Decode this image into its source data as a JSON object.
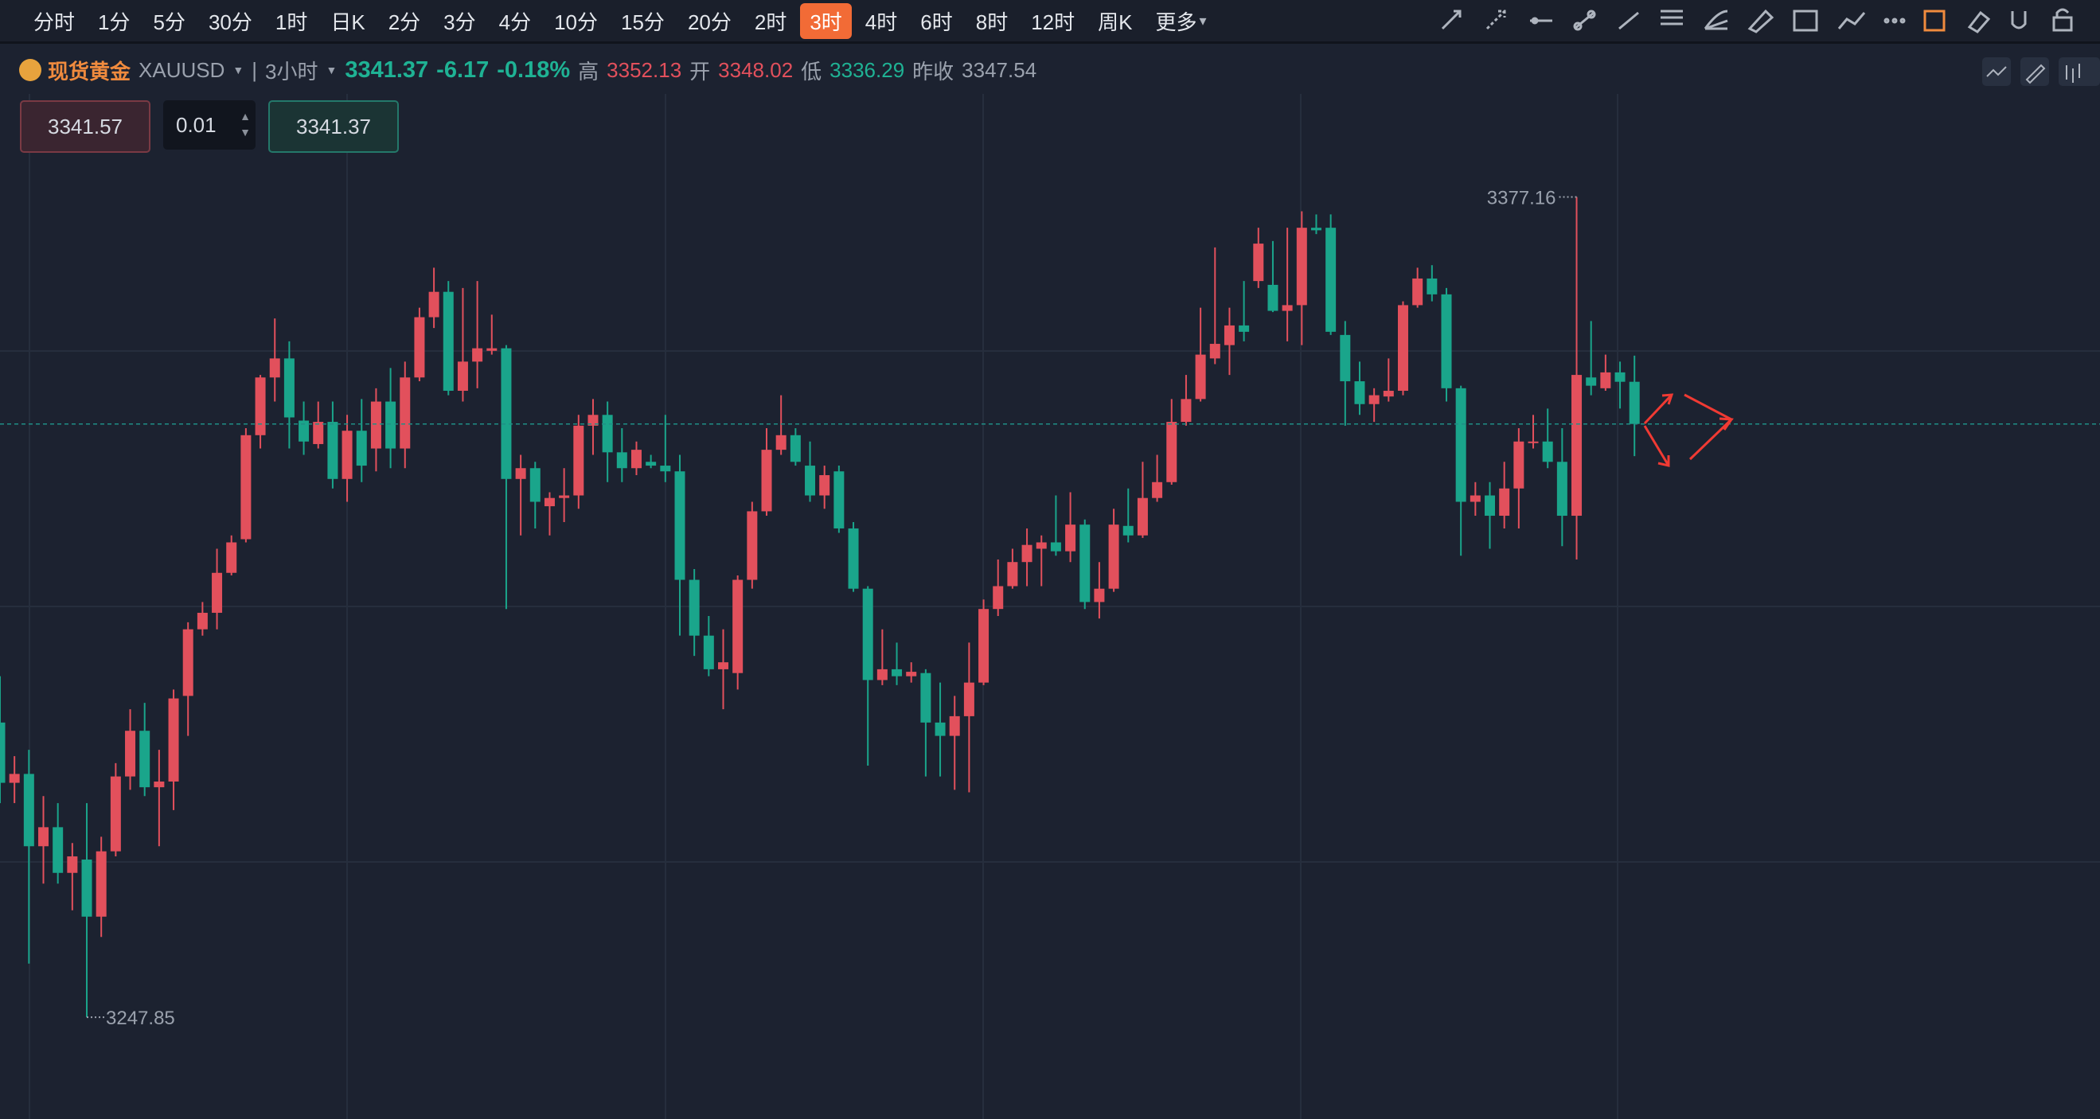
{
  "toolbar": {
    "intervals": [
      "分时",
      "1分",
      "5分",
      "30分",
      "1时",
      "日K",
      "2分",
      "3分",
      "4分",
      "10分",
      "15分",
      "20分",
      "2时",
      "3时",
      "4时",
      "6时",
      "8时",
      "12时",
      "周K",
      "更多"
    ],
    "active_interval": 13
  },
  "header": {
    "name": "现货黄金",
    "symbol": "XAUUSD",
    "period": "3小时",
    "last": 3341.37,
    "change": "-6.17",
    "change_pct": "-0.18%",
    "high_label": "高",
    "high": "3352.13",
    "open_label": "开",
    "open": "3348.02",
    "low_label": "低",
    "low": "3336.29",
    "prev_close_label": "昨收",
    "prev_close": "3347.54"
  },
  "order": {
    "sell": "3341.57",
    "lots": "0.01",
    "buy": "3341.37"
  },
  "chart_data": {
    "type": "candlestick",
    "up_color": "#e2505c",
    "down_color": "#1aa58b",
    "ylim": [
      3231.8,
      3393.4
    ],
    "max_label": 3377.16,
    "min_label": 3247.85,
    "candles": [
      [
        3294.3,
        3301.6,
        3281.6,
        3284.8
      ],
      [
        3284.8,
        3289.0,
        3281.6,
        3286.2
      ],
      [
        3286.2,
        3290.0,
        3256.3,
        3274.8
      ],
      [
        3274.8,
        3282.7,
        3268.9,
        3277.8
      ],
      [
        3277.8,
        3281.6,
        3268.9,
        3270.6
      ],
      [
        3270.6,
        3275.3,
        3264.7,
        3273.2
      ],
      [
        3272.7,
        3281.6,
        3247.85,
        3263.7
      ],
      [
        3263.7,
        3276.3,
        3260.5,
        3274.0
      ],
      [
        3274.0,
        3287.9,
        3273.2,
        3285.8
      ],
      [
        3285.8,
        3296.4,
        3283.7,
        3293.0
      ],
      [
        3293.0,
        3297.4,
        3282.7,
        3284.1
      ],
      [
        3284.1,
        3290.0,
        3274.8,
        3285.0
      ],
      [
        3285.0,
        3299.5,
        3280.5,
        3298.1
      ],
      [
        3298.5,
        3310.1,
        3292.2,
        3309.0
      ],
      [
        3309.0,
        3313.3,
        3308.0,
        3311.6
      ],
      [
        3311.6,
        3321.7,
        3309.0,
        3317.9
      ],
      [
        3317.9,
        3323.8,
        3317.5,
        3322.7
      ],
      [
        3323.2,
        3340.7,
        3322.7,
        3339.6
      ],
      [
        3339.6,
        3349.1,
        3337.5,
        3348.7
      ],
      [
        3348.7,
        3358.0,
        3344.9,
        3351.7
      ],
      [
        3351.7,
        3354.4,
        3337.5,
        3342.4
      ],
      [
        3341.9,
        3344.9,
        3336.5,
        3338.6
      ],
      [
        3338.2,
        3344.9,
        3337.5,
        3341.7
      ],
      [
        3341.7,
        3344.9,
        3331.2,
        3332.7
      ],
      [
        3332.7,
        3342.8,
        3329.1,
        3340.3
      ],
      [
        3340.3,
        3345.3,
        3332.2,
        3334.8
      ],
      [
        3337.5,
        3347.0,
        3333.9,
        3344.9
      ],
      [
        3344.9,
        3350.2,
        3334.4,
        3337.5
      ],
      [
        3337.5,
        3351.2,
        3334.4,
        3348.7
      ],
      [
        3348.7,
        3359.7,
        3348.1,
        3358.2
      ],
      [
        3358.2,
        3366.0,
        3356.5,
        3362.2
      ],
      [
        3362.2,
        3363.9,
        3345.9,
        3346.6
      ],
      [
        3346.6,
        3362.8,
        3344.9,
        3351.2
      ],
      [
        3351.2,
        3363.9,
        3347.0,
        3353.3
      ],
      [
        3352.9,
        3358.6,
        3352.3,
        3353.3
      ],
      [
        3353.3,
        3353.8,
        3312.2,
        3332.7
      ],
      [
        3332.7,
        3336.5,
        3323.8,
        3334.4
      ],
      [
        3334.4,
        3335.4,
        3324.9,
        3329.1
      ],
      [
        3328.4,
        3330.6,
        3323.8,
        3329.7
      ],
      [
        3329.7,
        3334.4,
        3325.9,
        3330.1
      ],
      [
        3330.1,
        3342.8,
        3328.0,
        3341.1
      ],
      [
        3341.1,
        3345.3,
        3336.5,
        3342.8
      ],
      [
        3342.8,
        3344.9,
        3332.2,
        3336.9
      ],
      [
        3336.9,
        3340.7,
        3332.2,
        3334.4
      ],
      [
        3334.4,
        3338.6,
        3333.3,
        3337.3
      ],
      [
        3335.4,
        3336.5,
        3334.4,
        3334.8
      ],
      [
        3334.8,
        3342.8,
        3332.2,
        3333.9
      ],
      [
        3333.9,
        3336.5,
        3308.0,
        3316.8
      ],
      [
        3316.8,
        3318.5,
        3304.8,
        3308.0
      ],
      [
        3308.0,
        3311.1,
        3301.6,
        3302.7
      ],
      [
        3302.7,
        3309.0,
        3296.4,
        3303.8
      ],
      [
        3302.1,
        3317.5,
        3299.5,
        3316.8
      ],
      [
        3316.8,
        3329.1,
        3315.4,
        3327.6
      ],
      [
        3327.6,
        3340.7,
        3326.9,
        3337.3
      ],
      [
        3337.3,
        3345.9,
        3336.5,
        3339.6
      ],
      [
        3339.6,
        3340.7,
        3334.8,
        3335.4
      ],
      [
        3334.8,
        3338.6,
        3329.1,
        3330.1
      ],
      [
        3330.1,
        3334.8,
        3328.0,
        3333.3
      ],
      [
        3333.9,
        3334.8,
        3324.2,
        3324.9
      ],
      [
        3324.9,
        3325.9,
        3314.9,
        3315.4
      ],
      [
        3315.4,
        3315.8,
        3287.5,
        3301.0
      ],
      [
        3301.0,
        3309.0,
        3300.2,
        3302.7
      ],
      [
        3302.7,
        3306.9,
        3300.2,
        3301.6
      ],
      [
        3301.6,
        3303.8,
        3300.6,
        3302.3
      ],
      [
        3302.1,
        3302.7,
        3285.8,
        3294.3
      ],
      [
        3294.3,
        3300.6,
        3285.8,
        3292.2
      ],
      [
        3292.2,
        3298.5,
        3283.7,
        3295.3
      ],
      [
        3295.3,
        3306.9,
        3283.3,
        3300.6
      ],
      [
        3300.6,
        3313.7,
        3300.2,
        3312.2
      ],
      [
        3312.2,
        3320.0,
        3311.1,
        3315.8
      ],
      [
        3315.8,
        3321.7,
        3315.4,
        3319.6
      ],
      [
        3319.6,
        3324.9,
        3315.8,
        3322.3
      ],
      [
        3321.7,
        3323.8,
        3315.8,
        3322.7
      ],
      [
        3322.7,
        3330.1,
        3320.6,
        3321.3
      ],
      [
        3321.3,
        3330.6,
        3319.6,
        3325.5
      ],
      [
        3325.5,
        3326.3,
        3312.2,
        3313.3
      ],
      [
        3313.3,
        3319.6,
        3310.7,
        3315.4
      ],
      [
        3315.4,
        3328.0,
        3314.9,
        3325.5
      ],
      [
        3325.3,
        3331.2,
        3322.7,
        3323.8
      ],
      [
        3323.8,
        3335.4,
        3323.4,
        3329.7
      ],
      [
        3329.7,
        3336.5,
        3329.1,
        3332.2
      ],
      [
        3332.2,
        3345.3,
        3331.8,
        3341.7
      ],
      [
        3341.7,
        3349.1,
        3341.1,
        3345.3
      ],
      [
        3345.3,
        3359.7,
        3344.9,
        3352.3
      ],
      [
        3351.7,
        3369.2,
        3350.8,
        3354.0
      ],
      [
        3353.8,
        3359.7,
        3349.1,
        3356.9
      ],
      [
        3356.9,
        3363.9,
        3354.4,
        3355.9
      ],
      [
        3363.9,
        3372.3,
        3362.8,
        3369.8
      ],
      [
        3363.3,
        3370.2,
        3359.0,
        3359.2
      ],
      [
        3359.2,
        3372.3,
        3354.4,
        3360.1
      ],
      [
        3360.1,
        3374.9,
        3353.8,
        3372.3
      ],
      [
        3372.3,
        3374.4,
        3371.3,
        3371.9
      ],
      [
        3372.3,
        3374.4,
        3355.4,
        3355.9
      ],
      [
        3355.4,
        3357.6,
        3341.1,
        3348.1
      ],
      [
        3348.1,
        3351.2,
        3342.8,
        3344.5
      ],
      [
        3344.5,
        3347.0,
        3341.7,
        3345.9
      ],
      [
        3345.7,
        3351.7,
        3344.9,
        3346.6
      ],
      [
        3346.6,
        3360.7,
        3345.9,
        3360.1
      ],
      [
        3360.1,
        3366.0,
        3359.7,
        3364.3
      ],
      [
        3364.3,
        3366.4,
        3360.7,
        3361.8
      ],
      [
        3361.8,
        3362.8,
        3344.9,
        3347.0
      ],
      [
        3347.0,
        3347.4,
        3320.6,
        3329.1
      ],
      [
        3329.1,
        3332.2,
        3326.9,
        3330.1
      ],
      [
        3330.1,
        3332.2,
        3321.7,
        3326.9
      ],
      [
        3326.9,
        3335.4,
        3324.9,
        3331.2
      ],
      [
        3331.2,
        3340.7,
        3324.9,
        3338.6
      ],
      [
        3338.6,
        3342.8,
        3337.5,
        3338.6
      ],
      [
        3338.6,
        3343.8,
        3334.4,
        3335.4
      ],
      [
        3335.4,
        3340.7,
        3322.1,
        3326.9
      ],
      [
        3326.9,
        3377.16,
        3320.0,
        3349.1
      ],
      [
        3348.7,
        3357.6,
        3345.9,
        3347.4
      ],
      [
        3347.0,
        3352.3,
        3346.6,
        3349.5
      ],
      [
        3349.5,
        3351.2,
        3343.8,
        3348.02
      ],
      [
        3348.02,
        3352.13,
        3336.29,
        3341.37
      ]
    ]
  }
}
